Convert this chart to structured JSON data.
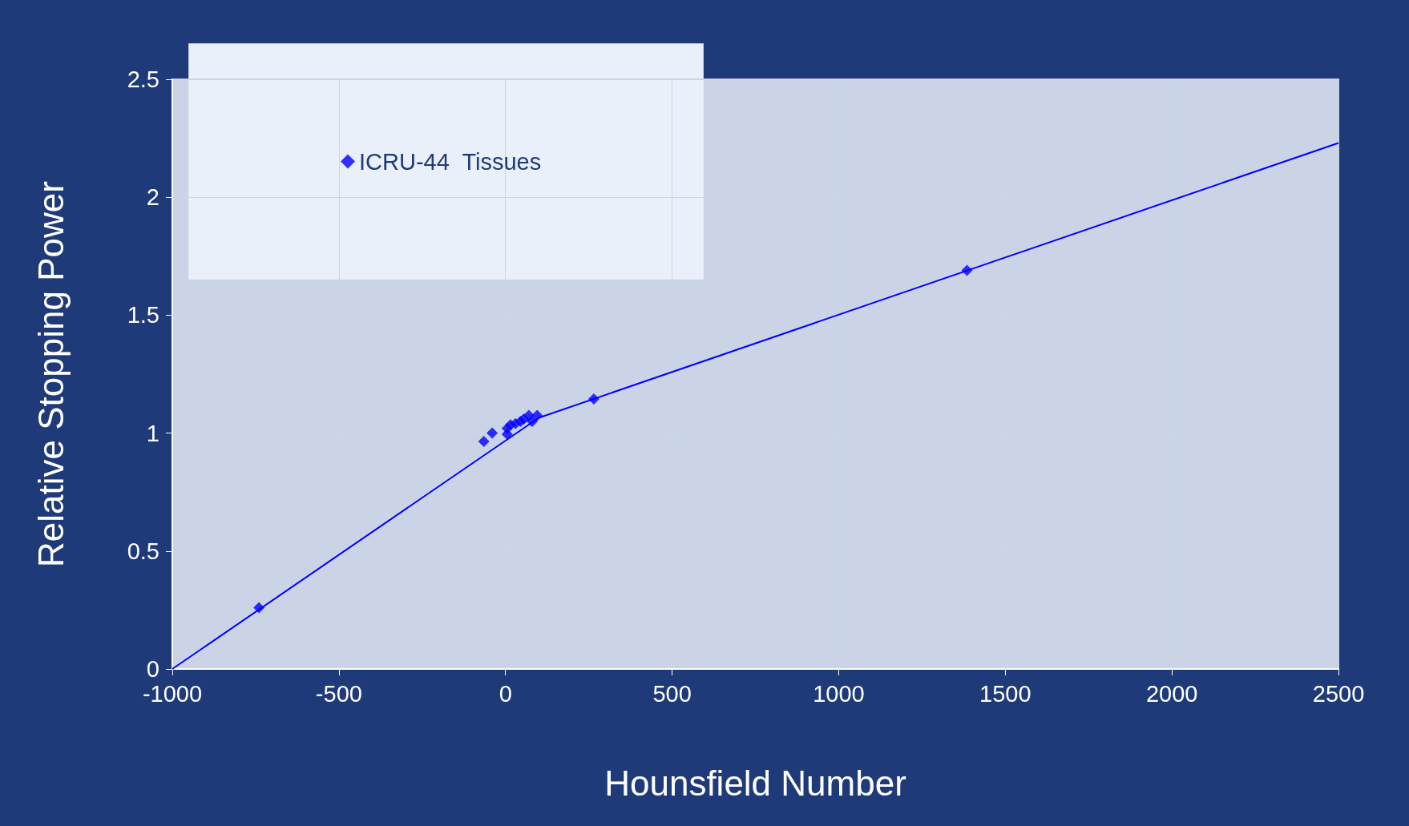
{
  "chart_data": {
    "type": "scatter",
    "xlabel": "Hounsfield Number",
    "ylabel": "Relative Stopping Power",
    "series": [
      {
        "name": "ICRU-44  Tissues",
        "color": "#0000ff",
        "marker": "diamond",
        "x": [
          -740,
          -65,
          -40,
          5,
          5,
          15,
          30,
          45,
          55,
          70,
          80,
          95,
          265,
          1385
        ],
        "values": [
          0.26,
          0.965,
          1.0,
          0.995,
          1.02,
          1.035,
          1.04,
          1.05,
          1.06,
          1.075,
          1.05,
          1.075,
          1.145,
          1.69
        ]
      },
      {
        "type": "line",
        "color": "#0000ff",
        "marker": "none",
        "x": [
          -1000,
          100,
          2500
        ],
        "values": [
          0,
          1.065,
          2.23
        ]
      }
    ],
    "xlim": [
      -1000,
      2500
    ],
    "xticks": [
      -1000,
      -500,
      0,
      500,
      1000,
      1500,
      2000,
      2500
    ],
    "ylim": [
      0,
      2.5
    ],
    "yticks": [
      0,
      0.5,
      1,
      1.5,
      2,
      2.5
    ],
    "grid": true,
    "legend": "top left"
  }
}
